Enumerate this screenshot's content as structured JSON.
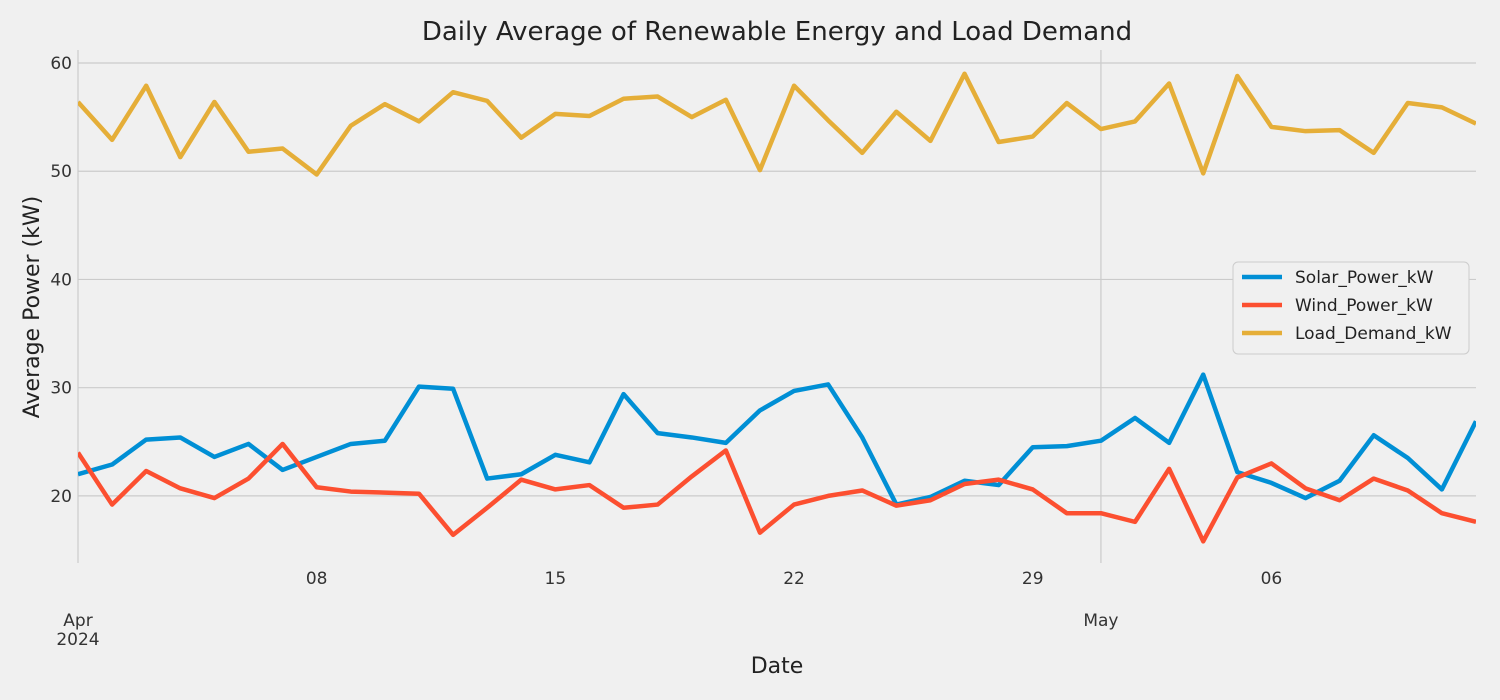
{
  "chart_data": {
    "type": "line",
    "title": "Daily Average of Renewable Energy and Load Demand",
    "xlabel": "Date",
    "ylabel": "Average Power (kW)",
    "x": [
      "2024-04-01",
      "2024-04-02",
      "2024-04-03",
      "2024-04-04",
      "2024-04-05",
      "2024-04-06",
      "2024-04-07",
      "2024-04-08",
      "2024-04-09",
      "2024-04-10",
      "2024-04-11",
      "2024-04-12",
      "2024-04-13",
      "2024-04-14",
      "2024-04-15",
      "2024-04-16",
      "2024-04-17",
      "2024-04-18",
      "2024-04-19",
      "2024-04-20",
      "2024-04-21",
      "2024-04-22",
      "2024-04-23",
      "2024-04-24",
      "2024-04-25",
      "2024-04-26",
      "2024-04-27",
      "2024-04-28",
      "2024-04-29",
      "2024-04-30",
      "2024-05-01",
      "2024-05-02",
      "2024-05-03",
      "2024-05-04",
      "2024-05-05",
      "2024-05-06",
      "2024-05-07",
      "2024-05-08",
      "2024-05-09",
      "2024-05-10",
      "2024-05-11",
      "2024-05-12"
    ],
    "xlim": [
      "2024-04-01",
      "2024-05-12"
    ],
    "ylim": [
      13.8,
      61.2
    ],
    "x_ticks": [
      {
        "date": "2024-04-01",
        "label": "Apr",
        "sublabel": "2024",
        "major": true
      },
      {
        "date": "2024-04-08",
        "label": "08",
        "major": false
      },
      {
        "date": "2024-04-15",
        "label": "15",
        "major": false
      },
      {
        "date": "2024-04-22",
        "label": "22",
        "major": false
      },
      {
        "date": "2024-04-29",
        "label": "29",
        "major": false
      },
      {
        "date": "2024-05-01",
        "label": "May",
        "major": true
      },
      {
        "date": "2024-05-06",
        "label": "06",
        "major": false
      }
    ],
    "y_ticks": [
      20,
      30,
      40,
      50,
      60
    ],
    "grid": true,
    "legend": "center-right",
    "series": [
      {
        "name": "Solar_Power_kW",
        "color": "#008fd5",
        "values": [
          22.0,
          22.9,
          25.2,
          25.4,
          23.6,
          24.8,
          22.4,
          23.6,
          24.8,
          25.1,
          30.1,
          29.9,
          21.6,
          22.0,
          23.8,
          23.1,
          29.4,
          25.8,
          25.4,
          24.9,
          27.9,
          29.7,
          30.3,
          25.4,
          19.2,
          19.9,
          21.4,
          21.0,
          24.5,
          24.6,
          25.1,
          27.2,
          24.9,
          31.2,
          22.2,
          21.2,
          19.8,
          21.4,
          25.6,
          23.5,
          20.6,
          26.9
        ]
      },
      {
        "name": "Wind_Power_kW",
        "color": "#fc4f30",
        "values": [
          24.0,
          19.2,
          22.3,
          20.7,
          19.8,
          21.6,
          24.8,
          20.8,
          20.4,
          20.3,
          20.2,
          16.4,
          18.9,
          21.5,
          20.6,
          21.0,
          18.9,
          19.2,
          21.8,
          24.2,
          16.6,
          19.2,
          20.0,
          20.5,
          19.1,
          19.6,
          21.1,
          21.5,
          20.6,
          18.4,
          18.4,
          17.6,
          22.5,
          15.8,
          21.7,
          23.0,
          20.7,
          19.6,
          21.6,
          20.5,
          18.4,
          17.6
        ]
      },
      {
        "name": "Load_Demand_kW",
        "color": "#e5ae38",
        "values": [
          56.4,
          52.9,
          57.9,
          51.3,
          56.4,
          51.8,
          52.1,
          49.7,
          54.2,
          56.2,
          54.6,
          57.3,
          56.5,
          53.1,
          55.3,
          55.1,
          56.7,
          56.9,
          55.0,
          56.6,
          50.1,
          57.9,
          54.7,
          51.7,
          55.5,
          52.8,
          59.0,
          52.7,
          53.2,
          56.3,
          53.9,
          54.6,
          58.1,
          49.8,
          58.8,
          54.1,
          53.7,
          53.8,
          51.7,
          56.3,
          55.9,
          54.4
        ]
      }
    ]
  }
}
